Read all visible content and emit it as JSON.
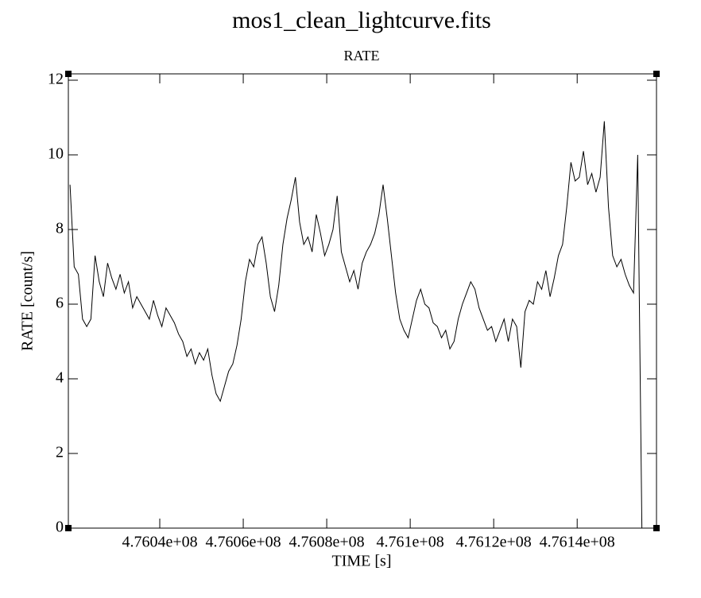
{
  "chart_data": {
    "type": "line",
    "title": "mos1_clean_lightcurve.fits",
    "subtitle": "RATE",
    "x_label": "TIME [s]",
    "y_label": "RATE [count/s]",
    "xlim": [
      476018100,
      476159000
    ],
    "ylim": [
      0,
      12.17
    ],
    "xticks": [
      {
        "value": 476040000,
        "label": "4.7604e+08"
      },
      {
        "value": 476060000,
        "label": "4.7606e+08"
      },
      {
        "value": 476080000,
        "label": "4.7608e+08"
      },
      {
        "value": 476100000,
        "label": "4.761e+08"
      },
      {
        "value": 476120000,
        "label": "4.7612e+08"
      },
      {
        "value": 476140000,
        "label": "4.7614e+08"
      }
    ],
    "yticks": [
      0,
      2,
      4,
      6,
      8,
      10,
      12
    ],
    "series": [
      {
        "name": "RATE",
        "color": "#000000",
        "x": [
          476018500,
          476019500,
          476020500,
          476021500,
          476022500,
          476023500,
          476024500,
          476025500,
          476026500,
          476027500,
          476028500,
          476029500,
          476030500,
          476031500,
          476032500,
          476033500,
          476034500,
          476035500,
          476036500,
          476037500,
          476038500,
          476039500,
          476040500,
          476041500,
          476042500,
          476043500,
          476044500,
          476045500,
          476046500,
          476047500,
          476048500,
          476049500,
          476050500,
          476051500,
          476052500,
          476053500,
          476054500,
          476055500,
          476056500,
          476057500,
          476058500,
          476059500,
          476060500,
          476061500,
          476062500,
          476063500,
          476064500,
          476065500,
          476066500,
          476067500,
          476068500,
          476069500,
          476070500,
          476071500,
          476072500,
          476073500,
          476074500,
          476075500,
          476076500,
          476077500,
          476078500,
          476079500,
          476080500,
          476081500,
          476082500,
          476083500,
          476084500,
          476085500,
          476086500,
          476087500,
          476088500,
          476089500,
          476090500,
          476091500,
          476092500,
          476093500,
          476094500,
          476095500,
          476096500,
          476097500,
          476098500,
          476099500,
          476100500,
          476101500,
          476102500,
          476103500,
          476104500,
          476105500,
          476106500,
          476107500,
          476108500,
          476109500,
          476110500,
          476111500,
          476112500,
          476113500,
          476114500,
          476115500,
          476116500,
          476117500,
          476118500,
          476119500,
          476120500,
          476121500,
          476122500,
          476123500,
          476124500,
          476125500,
          476126500,
          476127500,
          476128500,
          476129500,
          476130500,
          476131500,
          476132500,
          476133500,
          476134500,
          476135500,
          476136500,
          476137500,
          476138500,
          476139500,
          476140500,
          476141500,
          476142500,
          476143500,
          476144500,
          476145500,
          476146500,
          476147500,
          476148500,
          476149500,
          476150500,
          476151500,
          476152500,
          476153500,
          476154500,
          476155500
        ],
        "values": [
          9.2,
          7.0,
          6.8,
          5.6,
          5.4,
          5.6,
          7.3,
          6.6,
          6.2,
          7.1,
          6.7,
          6.4,
          6.8,
          6.3,
          6.6,
          5.9,
          6.2,
          6.0,
          5.8,
          5.6,
          6.1,
          5.7,
          5.4,
          5.9,
          5.7,
          5.5,
          5.2,
          5.0,
          4.6,
          4.8,
          4.4,
          4.7,
          4.5,
          4.8,
          4.1,
          3.6,
          3.4,
          3.8,
          4.2,
          4.4,
          4.9,
          5.6,
          6.6,
          7.2,
          7.0,
          7.6,
          7.8,
          7.1,
          6.2,
          5.8,
          6.5,
          7.6,
          8.3,
          8.8,
          9.4,
          8.2,
          7.6,
          7.8,
          7.4,
          8.4,
          7.9,
          7.3,
          7.6,
          8.0,
          8.9,
          7.4,
          7.0,
          6.6,
          6.9,
          6.4,
          7.1,
          7.4,
          7.6,
          7.9,
          8.4,
          9.2,
          8.3,
          7.3,
          6.3,
          5.6,
          5.3,
          5.1,
          5.6,
          6.1,
          6.4,
          6.0,
          5.9,
          5.5,
          5.4,
          5.1,
          5.3,
          4.8,
          5.0,
          5.6,
          6.0,
          6.3,
          6.6,
          6.4,
          5.9,
          5.6,
          5.3,
          5.4,
          5.0,
          5.3,
          5.6,
          5.0,
          5.6,
          5.4,
          4.3,
          5.8,
          6.1,
          6.0,
          6.6,
          6.4,
          6.9,
          6.2,
          6.7,
          7.3,
          7.6,
          8.6,
          9.8,
          9.3,
          9.4,
          10.1,
          9.2,
          9.5,
          9.0,
          9.4,
          10.9,
          8.6,
          7.3,
          7.0,
          7.2,
          6.8,
          6.5,
          6.3,
          10.0,
          0
        ]
      }
    ]
  }
}
